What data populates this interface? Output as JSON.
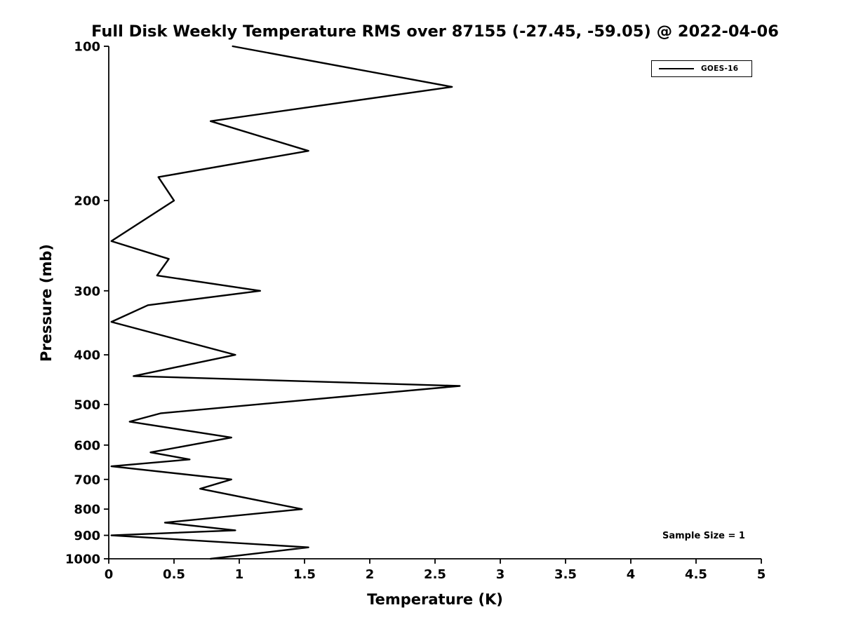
{
  "chart_data": {
    "type": "line",
    "title": "Full Disk Weekly Temperature RMS over 87155 (-27.45, -59.05) @ 2022-04-06",
    "xlabel": "Temperature (K)",
    "ylabel": "Pressure (mb)",
    "xlim": [
      0,
      5
    ],
    "ylim": [
      100,
      1000
    ],
    "y_scale": "log",
    "y_inverted": true,
    "grid": false,
    "xticks": [
      0,
      0.5,
      1,
      1.5,
      2,
      2.5,
      3,
      3.5,
      4,
      4.5,
      5
    ],
    "xtick_labels": [
      "0",
      "0.5",
      "1",
      "1.5",
      "2",
      "2.5",
      "3",
      "3.5",
      "4",
      "4.5",
      "5"
    ],
    "yticks": [
      100,
      200,
      300,
      400,
      500,
      600,
      700,
      800,
      900,
      1000
    ],
    "ytick_labels": [
      "100",
      "200",
      "300",
      "400",
      "500",
      "600",
      "700",
      "800",
      "900",
      "1000"
    ],
    "legend_position": "top-right",
    "annotation": "Sample Size = 1",
    "line_color": "#000000",
    "series": [
      {
        "name": "GOES-16",
        "pressure_mb": [
          100,
          120,
          140,
          160,
          180,
          200,
          240,
          260,
          280,
          300,
          320,
          345,
          400,
          440,
          460,
          520,
          540,
          580,
          620,
          640,
          660,
          700,
          730,
          800,
          850,
          880,
          900,
          950,
          1000
        ],
        "rms_k": [
          0.95,
          2.63,
          0.78,
          1.53,
          0.38,
          0.5,
          0.02,
          0.46,
          0.37,
          1.16,
          0.3,
          0.02,
          0.97,
          0.19,
          2.69,
          0.4,
          0.16,
          0.94,
          0.32,
          0.62,
          0.02,
          0.94,
          0.7,
          1.48,
          0.43,
          0.97,
          0.02,
          1.53,
          0.78
        ]
      }
    ]
  }
}
